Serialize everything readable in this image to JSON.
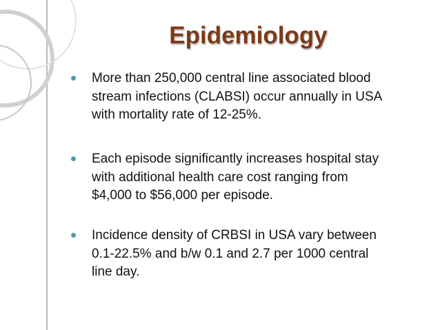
{
  "slide": {
    "title": "Epidemiology",
    "bullets": [
      [
        "More than 250,000 central line associated blood",
        "stream infections (CLABSI) occur annually in USA",
        "with mortality rate of 12-25%."
      ],
      [
        "Each episode significantly increases hospital stay",
        "with additional health care cost ranging from",
        "$4,000 to $56,000 per episode."
      ],
      [
        "Incidence density of CRBSI in USA vary between",
        "0.1-22.5% and b/w 0.1 and 2.7 per 1000 central",
        "line day."
      ]
    ]
  }
}
